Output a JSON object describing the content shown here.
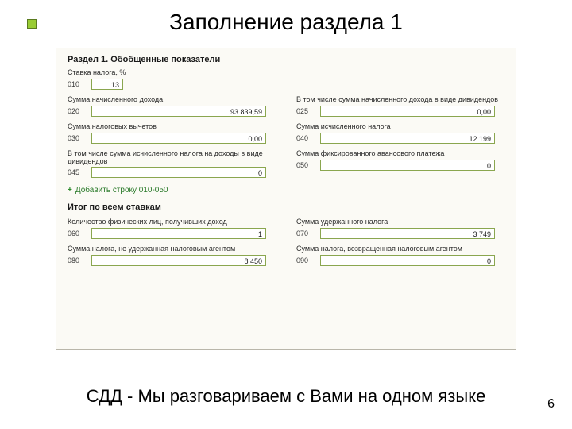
{
  "slide": {
    "title": "Заполнение раздела 1",
    "footer": "СДД - Мы разговариваем с Вами на одном языке",
    "page_number": "6"
  },
  "panel": {
    "header": "Раздел 1. Обобщенные показатели",
    "add_row_label": "Добавить строку 010-050",
    "totals_header": "Итог по всем ставкам",
    "rows": {
      "r010": {
        "label": "Ставка налога, %",
        "code": "010",
        "value": "13"
      },
      "r020": {
        "label": "Сумма начисленного дохода",
        "code": "020",
        "value": "93 839,59"
      },
      "r025": {
        "label": "В том числе сумма начисленного дохода в виде дивидендов",
        "code": "025",
        "value": "0,00"
      },
      "r030": {
        "label": "Сумма налоговых вычетов",
        "code": "030",
        "value": "0,00"
      },
      "r040": {
        "label": "Сумма исчисленного налога",
        "code": "040",
        "value": "12 199"
      },
      "r045": {
        "label": "В том числе сумма исчисленного налога на доходы в виде дивидендов",
        "code": "045",
        "value": "0"
      },
      "r050": {
        "label": "Сумма фиксированного авансового платежа",
        "code": "050",
        "value": "0"
      },
      "r060": {
        "label": "Количество физических лиц, получивших доход",
        "code": "060",
        "value": "1"
      },
      "r070": {
        "label": "Сумма удержанного налога",
        "code": "070",
        "value": "3 749"
      },
      "r080": {
        "label": "Сумма налога, не удержанная налоговым агентом",
        "code": "080",
        "value": "8 450"
      },
      "r090": {
        "label": "Сумма налога, возвращенная налоговым агентом",
        "code": "090",
        "value": "0"
      }
    }
  },
  "style": {
    "background": "#ffffff",
    "panel_bg": "#fbfaf5",
    "panel_border": "#b9b6aa",
    "input_border": "#8aa64f",
    "bullet_color": "#99cc33",
    "text_color": "#000000"
  }
}
